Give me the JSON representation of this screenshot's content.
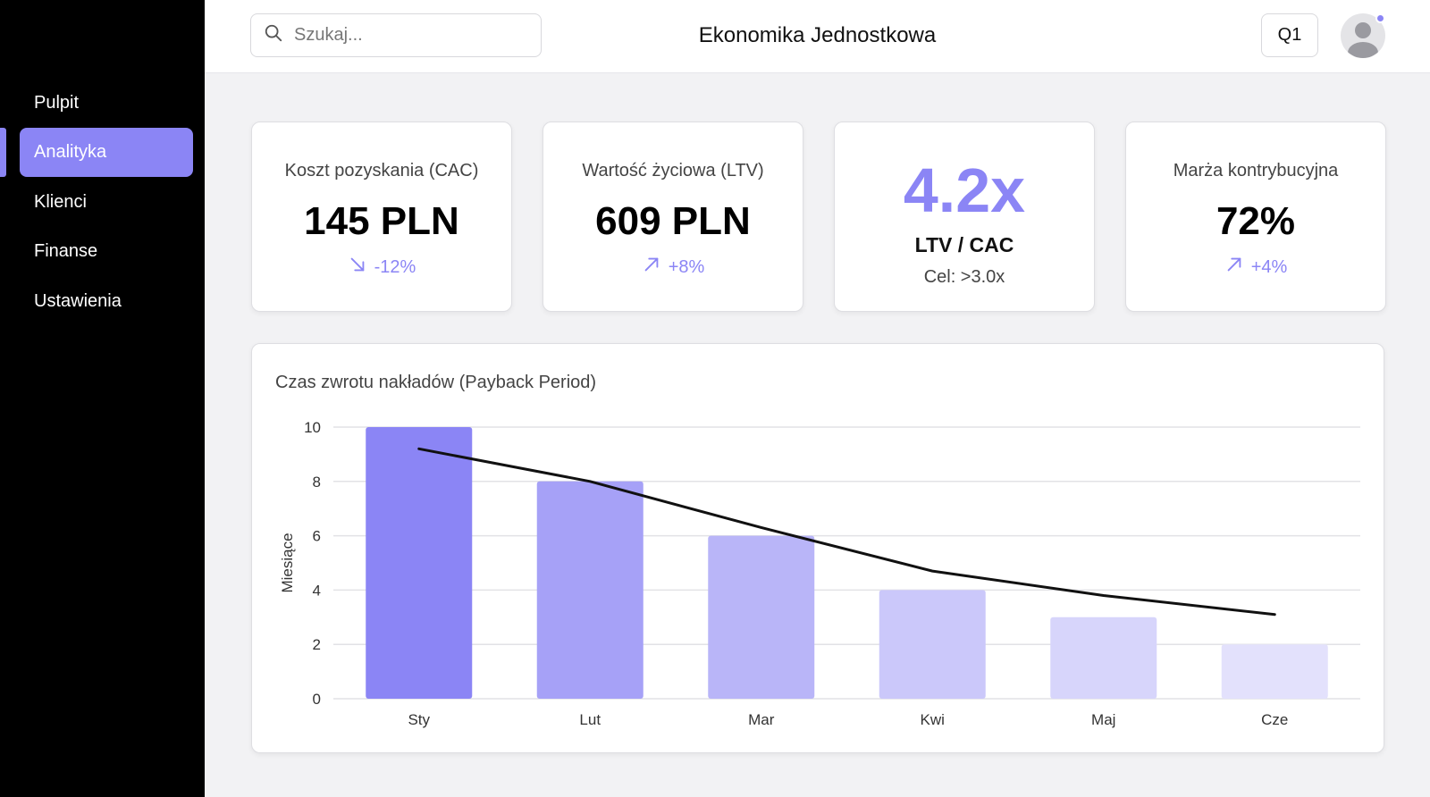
{
  "sidebar": {
    "items": [
      {
        "label": "Pulpit",
        "active": false
      },
      {
        "label": "Analityka",
        "active": true
      },
      {
        "label": "Klienci",
        "active": false
      },
      {
        "label": "Finanse",
        "active": false
      },
      {
        "label": "Ustawienia",
        "active": false
      }
    ]
  },
  "header": {
    "search_placeholder": "Szukaj...",
    "title": "Ekonomika Jednostkowa",
    "period_button": "Q1"
  },
  "kpis": {
    "cac": {
      "label": "Koszt pozyskania (CAC)",
      "value": "145 PLN",
      "delta": "-12%",
      "direction": "down"
    },
    "ltv": {
      "label": "Wartość życiowa (LTV)",
      "value": "609 PLN",
      "delta": "+8%",
      "direction": "up"
    },
    "ratio": {
      "value": "4.2x",
      "label": "LTV / CAC",
      "target": "Cel: >3.0x"
    },
    "margin": {
      "label": "Marża kontrybucyjna",
      "value": "72%",
      "delta": "+4%",
      "direction": "up"
    }
  },
  "colors": {
    "accent": "#8b85f5",
    "sidebar_bg": "#000000",
    "page_bg": "#f2f2f4"
  },
  "chart_title": "Czas zwrotu nakładów (Payback Period)",
  "chart_data": {
    "type": "bar",
    "title": "Czas zwrotu nakładów (Payback Period)",
    "categories": [
      "Sty",
      "Lut",
      "Mar",
      "Kwi",
      "Maj",
      "Cze"
    ],
    "values": [
      10,
      8,
      6,
      4,
      3,
      2
    ],
    "trend_line": [
      9.2,
      8.0,
      6.3,
      4.7,
      3.8,
      3.1
    ],
    "xlabel": "",
    "ylabel": "Miesiące",
    "ylim": [
      0,
      10
    ],
    "yticks": [
      0,
      2,
      4,
      6,
      8,
      10
    ],
    "grid": true,
    "bar_colors": [
      "#8b85f5",
      "#a6a1f7",
      "#b9b5f8",
      "#cbc8fa",
      "#d7d5fb",
      "#e3e1fc"
    ]
  }
}
